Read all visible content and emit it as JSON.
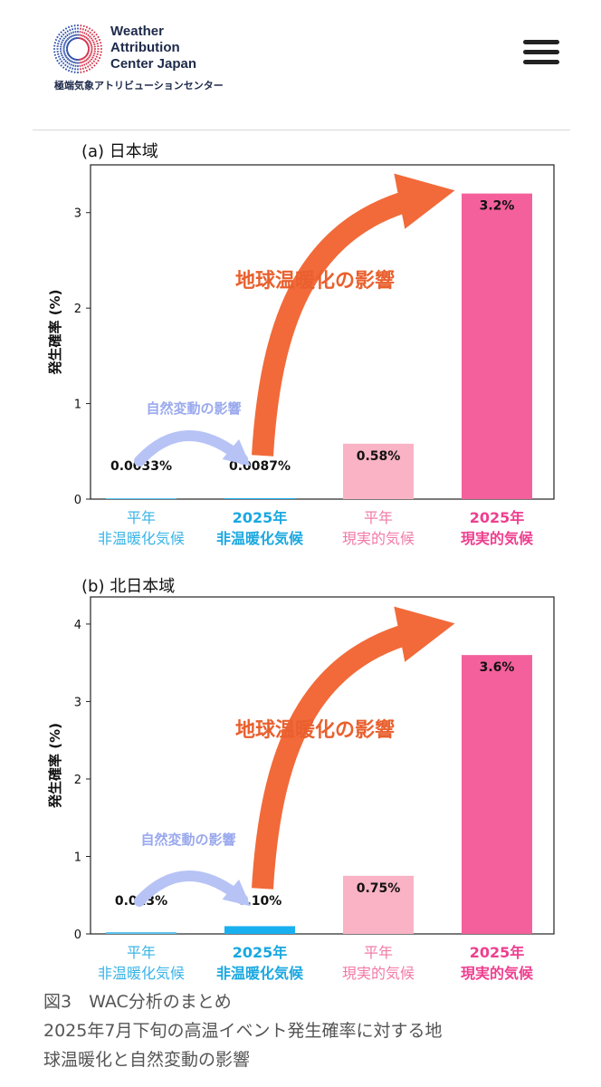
{
  "header": {
    "org_lines": [
      "Weather",
      "Attribution",
      "Center Japan"
    ],
    "org_japanese": "極端気象アトリビューションセンター",
    "menu_icon": "hamburger-menu-icon"
  },
  "figure": {
    "annotation_big": "地球温暖化の影響",
    "annotation_small": "自然変動の影響",
    "ylabel": "発生確率 (%)",
    "categories": [
      {
        "line1": "平年",
        "line2": "非温暖化気候"
      },
      {
        "line1": "2025年",
        "line2": "非温暖化気候"
      },
      {
        "line1": "平年",
        "line2": "現実的気候"
      },
      {
        "line1": "2025年",
        "line2": "現実的気候"
      }
    ],
    "category_colors": [
      "#3ab4e6",
      "#1aa8e0",
      "#f27aa6",
      "#ee3f8f"
    ],
    "bar_colors": [
      "#5bc4f0",
      "#19b0ef",
      "#f9b3c5",
      "#f4609c"
    ],
    "big_arrow_color": "#f26a3a",
    "small_arrow_color": "#b7c3f5"
  },
  "chart_data": [
    {
      "type": "bar",
      "title": "(a) 日本域",
      "ylabel": "発生確率 (%)",
      "categories": [
        "平年 非温暖化気候",
        "2025年 非温暖化気候",
        "平年 現実的気候",
        "2025年 現実的気候"
      ],
      "values": [
        0.0033,
        0.0087,
        0.58,
        3.2
      ],
      "value_labels": [
        "0.0033%",
        "0.0087%",
        "0.58%",
        "3.2%"
      ],
      "yticks": [
        "0",
        "1",
        "2",
        "3"
      ],
      "ylim": [
        0,
        3.5
      ]
    },
    {
      "type": "bar",
      "title": "(b) 北日本域",
      "ylabel": "発生確率 (%)",
      "categories": [
        "平年 非温暖化気候",
        "2025年 非温暖化気候",
        "平年 現実的気候",
        "2025年 現実的気候"
      ],
      "values": [
        0.023,
        0.1,
        0.75,
        3.6
      ],
      "value_labels": [
        "0.023%",
        "0.10%",
        "0.75%",
        "3.6%"
      ],
      "yticks": [
        "0",
        "1",
        "2",
        "3",
        "4"
      ],
      "ylim": [
        0,
        4.35
      ]
    }
  ],
  "caption": {
    "line1": "図3　WAC分析のまとめ",
    "line2": "2025年7月下旬の高温イベント発生確率に対する地",
    "line3": "球温暖化と自然変動の影響"
  }
}
